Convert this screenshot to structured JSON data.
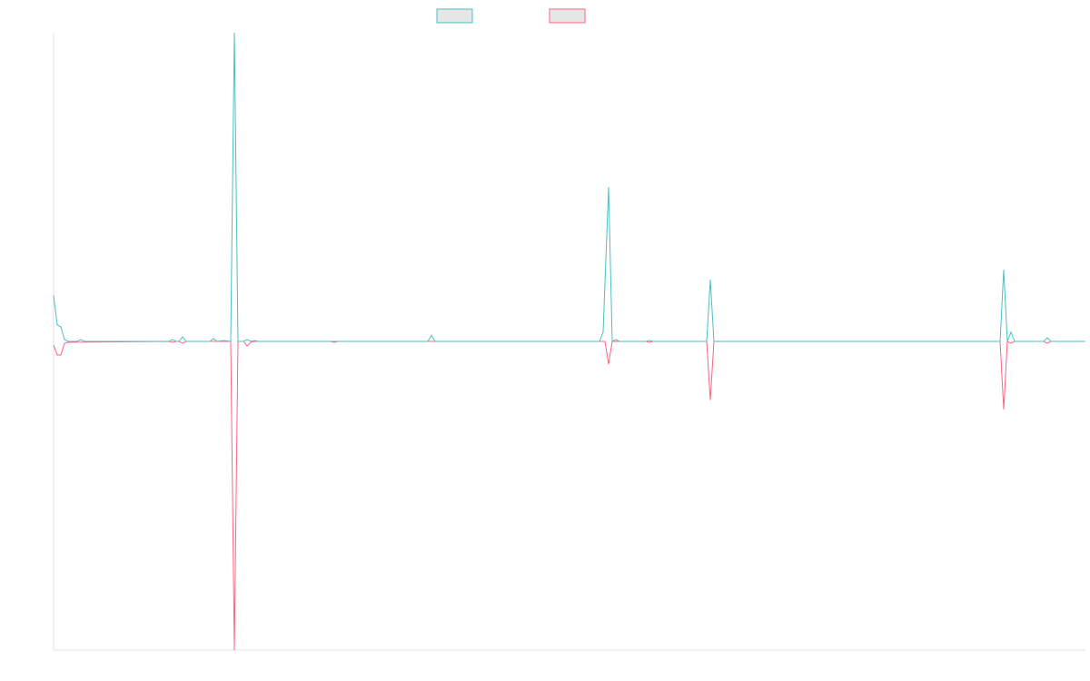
{
  "chart_data": {
    "type": "line",
    "xlim": [
      0,
      1136
    ],
    "ylim": [
      -1,
      1
    ],
    "series": [
      {
        "color": "#ff6384",
        "x": [
          0,
          4,
          8,
          12,
          16,
          127,
          131,
          135,
          138,
          142,
          146,
          195,
          199,
          203,
          209,
          213,
          217,
          221,
          305,
          309,
          313,
          607,
          611,
          615,
          652,
          656,
          660,
          719,
          723,
          727,
          1042,
          1046,
          1050,
          1054,
          1058,
          1090,
          1094,
          1098,
          1136
        ],
        "values": [
          -0.012,
          -0.044,
          -0.044,
          -0.006,
          -0.003,
          0,
          -0.003,
          0,
          0,
          -0.006,
          0,
          0,
          -1,
          0,
          0,
          -0.015,
          -0.003,
          0,
          0,
          -0.003,
          0,
          0,
          -0.074,
          0,
          0,
          -0.003,
          0,
          0,
          -0.19,
          0,
          0,
          -0.22,
          0,
          -0.006,
          0,
          0,
          -0.006,
          0,
          0
        ]
      },
      {
        "color": "#4bc0c0",
        "x": [
          0,
          4,
          8,
          12,
          16,
          26,
          30,
          34,
          127,
          131,
          135,
          138,
          142,
          146,
          172,
          176,
          180,
          187,
          195,
          199,
          203,
          209,
          213,
          217,
          221,
          225,
          412,
          416,
          420,
          601,
          605,
          611,
          615,
          619,
          623,
          652,
          656,
          660,
          719,
          723,
          727,
          1042,
          1046,
          1050,
          1054,
          1058,
          1090,
          1094,
          1098,
          1136
        ],
        "values": [
          0.15,
          0.053,
          0.047,
          0.006,
          0,
          0,
          0.006,
          0,
          0,
          0.006,
          0,
          0,
          0.015,
          0,
          0,
          0.009,
          0,
          0.003,
          0,
          1,
          0,
          0,
          0.006,
          0,
          0.003,
          0,
          0,
          0.02,
          0,
          0,
          0.03,
          0.5,
          0,
          0.006,
          0,
          0,
          0.003,
          0,
          0,
          0.2,
          0,
          0,
          0.232,
          0,
          0.03,
          0,
          0,
          0.012,
          0,
          0
        ]
      }
    ]
  }
}
